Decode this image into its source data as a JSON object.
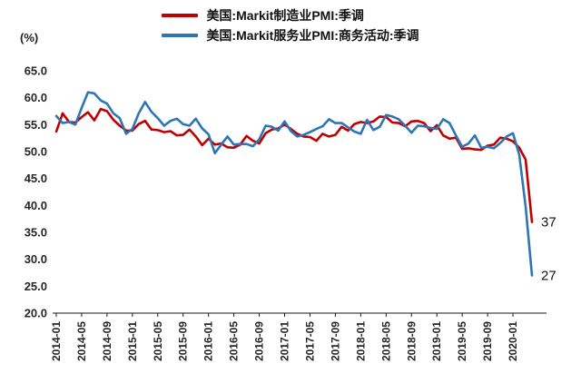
{
  "unit": "(%)",
  "legend": [
    {
      "label": "美国:Markit制造业PMI:季调",
      "color": "#c00000"
    },
    {
      "label": "美国:Markit服务业PMI:商务活动:季调",
      "color": "#2e75b6"
    }
  ],
  "chart_data": {
    "type": "line",
    "title": "",
    "xlabel": "",
    "ylabel": "(%)",
    "ylim": [
      20,
      65
    ],
    "grid": false,
    "legend_position": "top",
    "y_ticks": [
      "65.0",
      "60.0",
      "55.0",
      "50.0",
      "45.0",
      "40.0",
      "35.0",
      "30.0",
      "25.0",
      "20.0"
    ],
    "x_tick_labels": [
      "2014-01",
      "2014-05",
      "2014-09",
      "2015-01",
      "2015-05",
      "2015-09",
      "2016-01",
      "2016-05",
      "2016-09",
      "2017-01",
      "2017-05",
      "2017-09",
      "2018-01",
      "2018-05",
      "2018-09",
      "2019-01",
      "2019-05",
      "2019-09",
      "2020-01"
    ],
    "x": [
      "2014-01",
      "2014-02",
      "2014-03",
      "2014-04",
      "2014-05",
      "2014-06",
      "2014-07",
      "2014-08",
      "2014-09",
      "2014-10",
      "2014-11",
      "2014-12",
      "2015-01",
      "2015-02",
      "2015-03",
      "2015-04",
      "2015-05",
      "2015-06",
      "2015-07",
      "2015-08",
      "2015-09",
      "2015-10",
      "2015-11",
      "2015-12",
      "2016-01",
      "2016-02",
      "2016-03",
      "2016-04",
      "2016-05",
      "2016-06",
      "2016-07",
      "2016-08",
      "2016-09",
      "2016-10",
      "2016-11",
      "2016-12",
      "2017-01",
      "2017-02",
      "2017-03",
      "2017-04",
      "2017-05",
      "2017-06",
      "2017-07",
      "2017-08",
      "2017-09",
      "2017-10",
      "2017-11",
      "2017-12",
      "2018-01",
      "2018-02",
      "2018-03",
      "2018-04",
      "2018-05",
      "2018-06",
      "2018-07",
      "2018-08",
      "2018-09",
      "2018-10",
      "2018-11",
      "2018-12",
      "2019-01",
      "2019-02",
      "2019-03",
      "2019-04",
      "2019-05",
      "2019-06",
      "2019-07",
      "2019-08",
      "2019-09",
      "2019-10",
      "2019-11",
      "2019-12",
      "2020-01",
      "2020-02",
      "2020-03",
      "2020-04"
    ],
    "series": [
      {
        "name": "美国:Markit制造业PMI:季调",
        "color": "#c00000",
        "values": [
          53.7,
          57.1,
          55.5,
          55.4,
          56.4,
          57.3,
          55.8,
          57.9,
          57.5,
          55.9,
          54.8,
          53.9,
          53.9,
          55.1,
          55.7,
          54.1,
          54.0,
          53.6,
          53.8,
          53.0,
          53.1,
          54.1,
          52.8,
          51.2,
          52.4,
          51.3,
          51.5,
          50.8,
          50.7,
          51.3,
          52.9,
          52.0,
          51.5,
          53.4,
          54.1,
          54.3,
          55.0,
          54.2,
          53.3,
          52.8,
          52.7,
          52.0,
          53.3,
          52.8,
          53.1,
          54.6,
          53.9,
          55.1,
          55.5,
          55.3,
          55.6,
          56.5,
          56.4,
          55.4,
          55.3,
          54.7,
          55.6,
          55.7,
          55.3,
          53.8,
          54.9,
          53.0,
          52.4,
          52.6,
          50.5,
          50.6,
          50.4,
          50.3,
          51.1,
          51.3,
          52.6,
          52.4,
          51.9,
          50.7,
          48.5,
          36.9
        ]
      },
      {
        "name": "美国:Markit服务业PMI:商务活动:季调",
        "color": "#2e75b6",
        "values": [
          56.6,
          55.3,
          55.5,
          55.0,
          58.1,
          61.0,
          60.8,
          59.5,
          58.9,
          57.1,
          56.2,
          53.3,
          54.2,
          57.1,
          59.2,
          57.4,
          56.2,
          54.8,
          55.7,
          56.1,
          55.1,
          54.8,
          56.1,
          54.3,
          53.2,
          49.7,
          51.3,
          52.8,
          51.3,
          51.4,
          51.4,
          51.0,
          52.3,
          54.8,
          54.6,
          53.9,
          55.6,
          53.8,
          52.8,
          53.1,
          53.6,
          54.2,
          54.7,
          56.0,
          55.3,
          55.3,
          54.5,
          53.7,
          53.3,
          55.9,
          54.0,
          54.6,
          56.8,
          56.5,
          56.0,
          54.8,
          53.5,
          54.8,
          54.7,
          54.4,
          54.2,
          56.0,
          55.3,
          53.0,
          50.9,
          51.5,
          53.0,
          50.7,
          50.9,
          50.6,
          51.6,
          52.8,
          53.4,
          49.4,
          39.8,
          27.0
        ]
      }
    ],
    "end_labels": [
      {
        "text": "37",
        "series": 0
      },
      {
        "text": "27",
        "series": 1
      }
    ]
  }
}
